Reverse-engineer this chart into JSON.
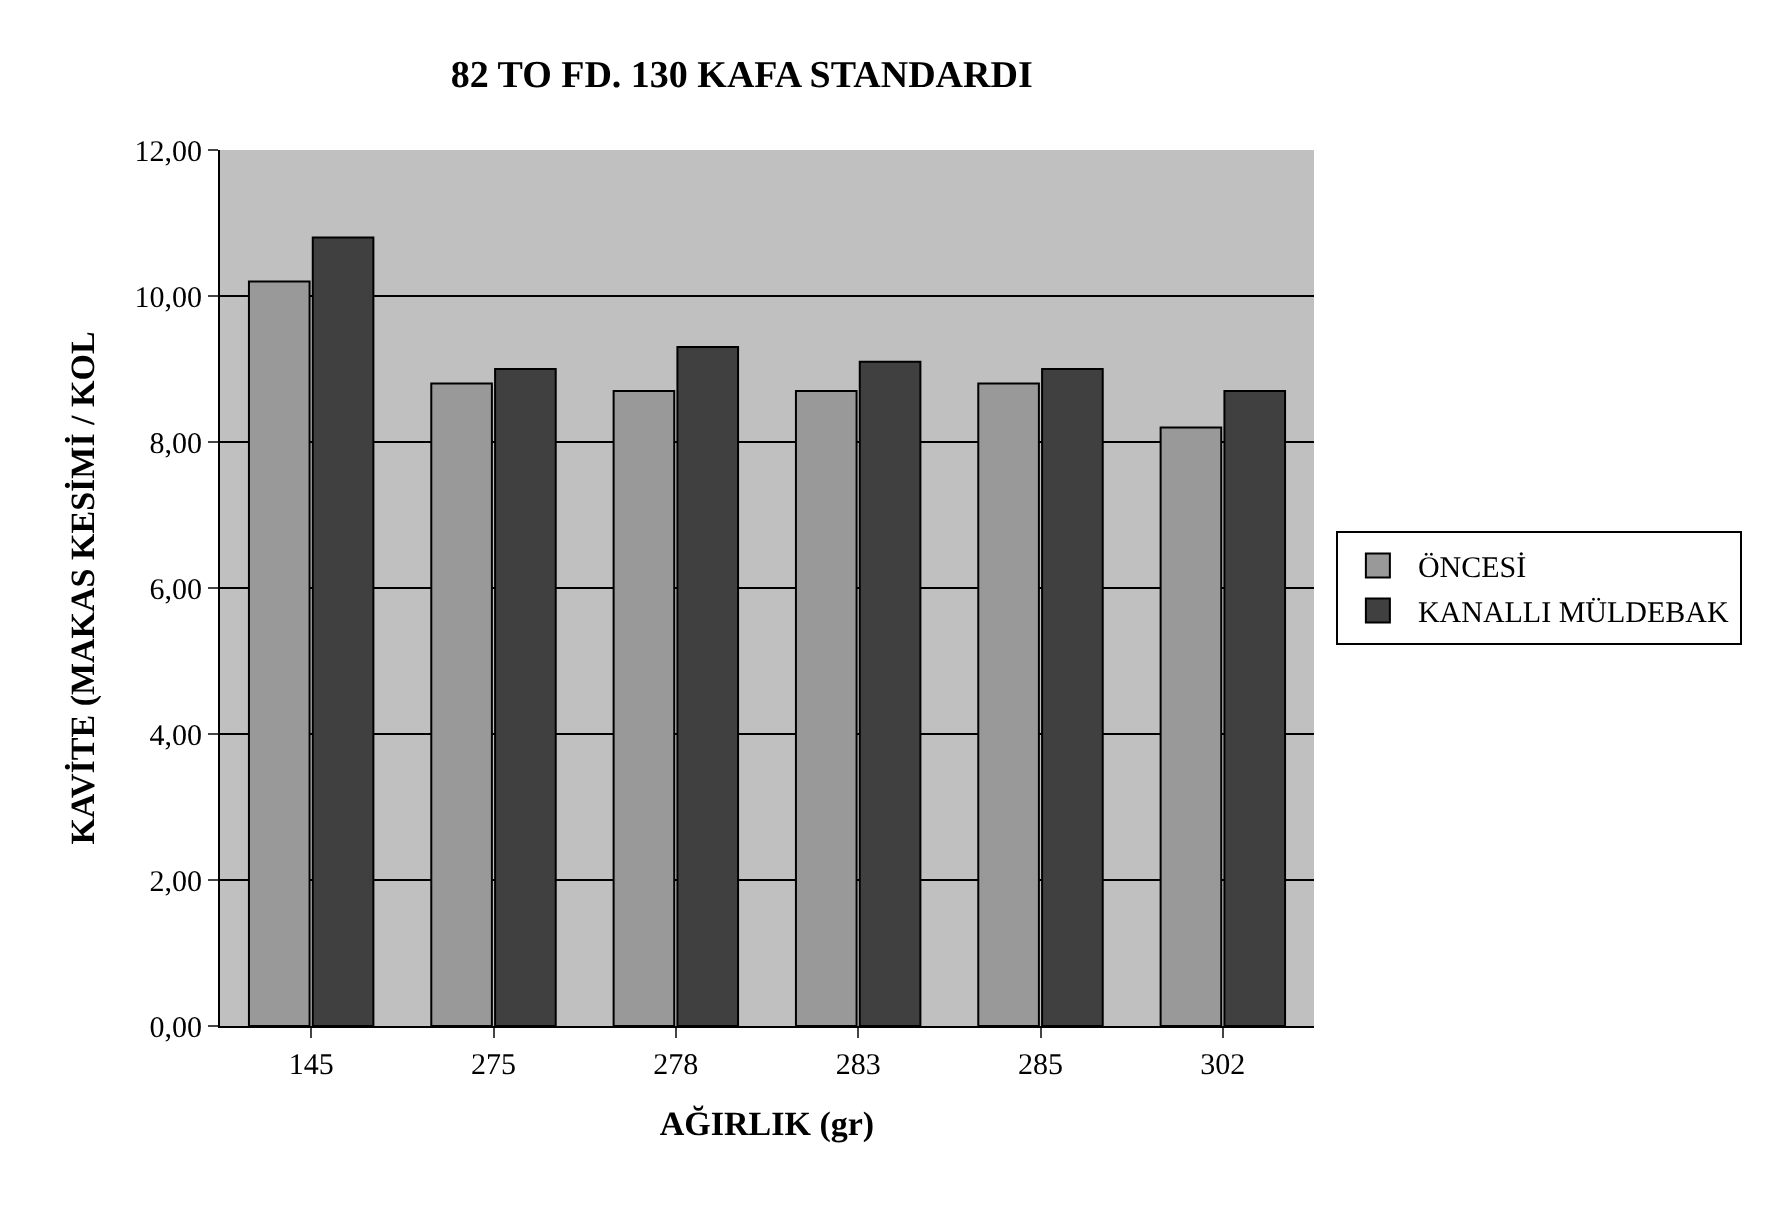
{
  "chart_data": {
    "type": "bar",
    "title": "82 TO FD. 130 KAFA STANDARDI",
    "xlabel": "AĞIRLIK (gr)",
    "ylabel": "KAVİTE (MAKAS KESİMİ / KOL",
    "categories": [
      "145",
      "275",
      "278",
      "283",
      "285",
      "302"
    ],
    "series": [
      {
        "name": "ÖNCESİ",
        "color": "#999999",
        "values": [
          10.2,
          8.8,
          8.7,
          8.7,
          8.8,
          8.2
        ]
      },
      {
        "name": "KANALLI MÜLDEBAK",
        "color": "#404040",
        "values": [
          10.8,
          9.0,
          9.3,
          9.1,
          9.0,
          8.7
        ]
      }
    ],
    "ylim": [
      0,
      12
    ],
    "yticks": [
      {
        "value": 0,
        "label": "0,00"
      },
      {
        "value": 2,
        "label": "2,00"
      },
      {
        "value": 4,
        "label": "4,00"
      },
      {
        "value": 6,
        "label": "6,00"
      },
      {
        "value": 8,
        "label": "8,00"
      },
      {
        "value": 10,
        "label": "10,00"
      },
      {
        "value": 12,
        "label": "12,00"
      }
    ],
    "grid": "y",
    "legend": "right"
  }
}
